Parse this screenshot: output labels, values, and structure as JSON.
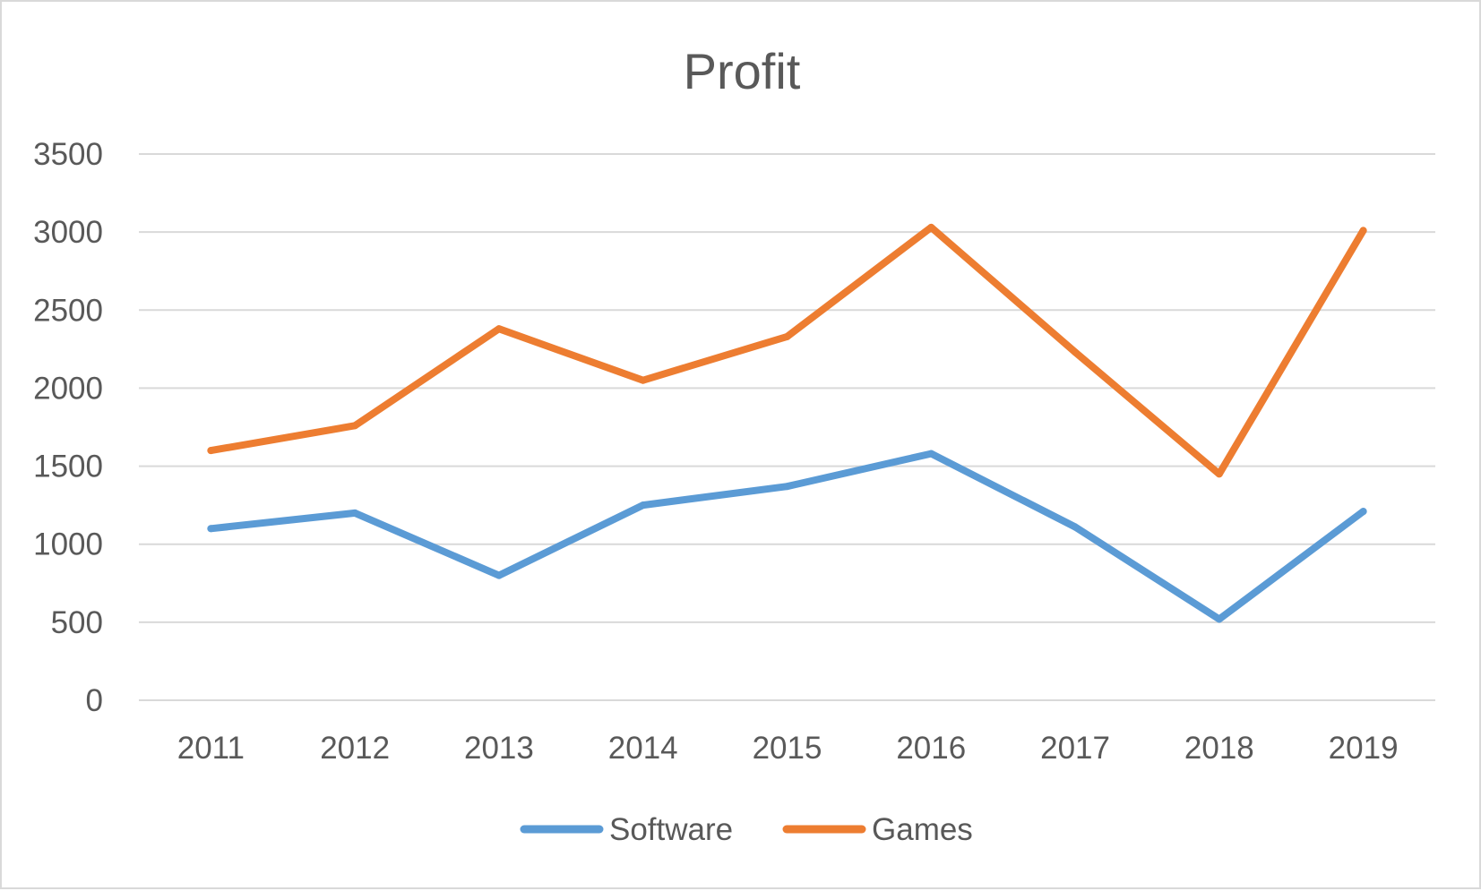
{
  "chart_data": {
    "type": "line",
    "title": "Profit",
    "xlabel": "",
    "ylabel": "",
    "categories": [
      "2011",
      "2012",
      "2013",
      "2014",
      "2015",
      "2016",
      "2017",
      "2018",
      "2019"
    ],
    "series": [
      {
        "name": "Software",
        "color": "#5b9bd5",
        "values": [
          1100,
          1200,
          800,
          1250,
          1370,
          1580,
          1110,
          520,
          1210
        ]
      },
      {
        "name": "Games",
        "color": "#ed7d31",
        "values": [
          1600,
          1760,
          2380,
          2050,
          2330,
          3030,
          2230,
          1450,
          3010
        ]
      }
    ],
    "ylim": [
      0,
      3500
    ],
    "yticks": [
      "0",
      "500",
      "1000",
      "1500",
      "2000",
      "2500",
      "3000",
      "3500"
    ],
    "grid": true,
    "legend_position": "bottom"
  }
}
